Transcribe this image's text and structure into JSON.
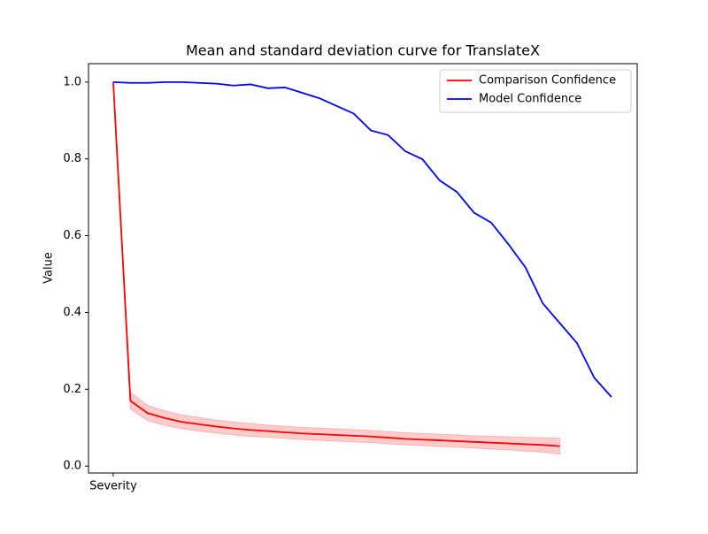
{
  "chart_data": {
    "type": "line",
    "title": "Mean and standard deviation curve for TranslateX",
    "ylabel": "Value",
    "x": [
      0,
      1,
      2,
      3,
      4,
      5,
      6,
      7,
      8,
      9,
      10,
      11,
      12,
      13,
      14,
      15,
      16,
      17,
      18,
      19,
      20,
      21,
      22,
      23,
      24,
      25,
      26,
      27,
      28,
      29
    ],
    "xlim": [
      -1.44,
      30.5
    ],
    "xticks": [
      {
        "value": 0,
        "label": "Severity"
      }
    ],
    "ylim": [
      -0.018,
      1.048
    ],
    "yticks": [
      {
        "value": 0,
        "label": "0.0"
      },
      {
        "value": 0.2,
        "label": "0.2"
      },
      {
        "value": 0.4,
        "label": "0.4"
      },
      {
        "value": 0.6,
        "label": "0.6"
      },
      {
        "value": 0.8,
        "label": "0.8"
      },
      {
        "value": 1,
        "label": "1.0"
      }
    ],
    "legend": "upper right",
    "series": [
      {
        "name": "Comparison Confidence",
        "color": "#ff0000",
        "values": [
          1.0,
          0.17,
          0.138,
          0.125,
          0.115,
          0.109,
          0.103,
          0.098,
          0.094,
          0.091,
          0.088,
          0.085,
          0.083,
          0.081,
          0.079,
          0.077,
          0.074,
          0.071,
          0.069,
          0.067,
          0.065,
          0.063,
          0.061,
          0.059,
          0.057,
          0.055,
          0.052,
          null,
          null,
          null
        ],
        "std": [
          0,
          0.022,
          0.02,
          0.019,
          0.018,
          0.018,
          0.017,
          0.017,
          0.017,
          0.016,
          0.016,
          0.016,
          0.016,
          0.016,
          0.016,
          0.016,
          0.016,
          0.016,
          0.016,
          0.016,
          0.016,
          0.016,
          0.017,
          0.017,
          0.018,
          0.019,
          0.021,
          null,
          null,
          null
        ]
      },
      {
        "name": "Model Confidence",
        "color": "#0000ff",
        "values": [
          1.0,
          0.998,
          0.998,
          1.0,
          1.0,
          0.998,
          0.996,
          0.991,
          0.994,
          0.984,
          0.986,
          0.972,
          0.958,
          0.938,
          0.918,
          0.874,
          0.862,
          0.82,
          0.799,
          0.744,
          0.714,
          0.66,
          0.634,
          0.578,
          0.517,
          0.424,
          0.372,
          0.32,
          0.23,
          0.18
        ]
      }
    ]
  }
}
